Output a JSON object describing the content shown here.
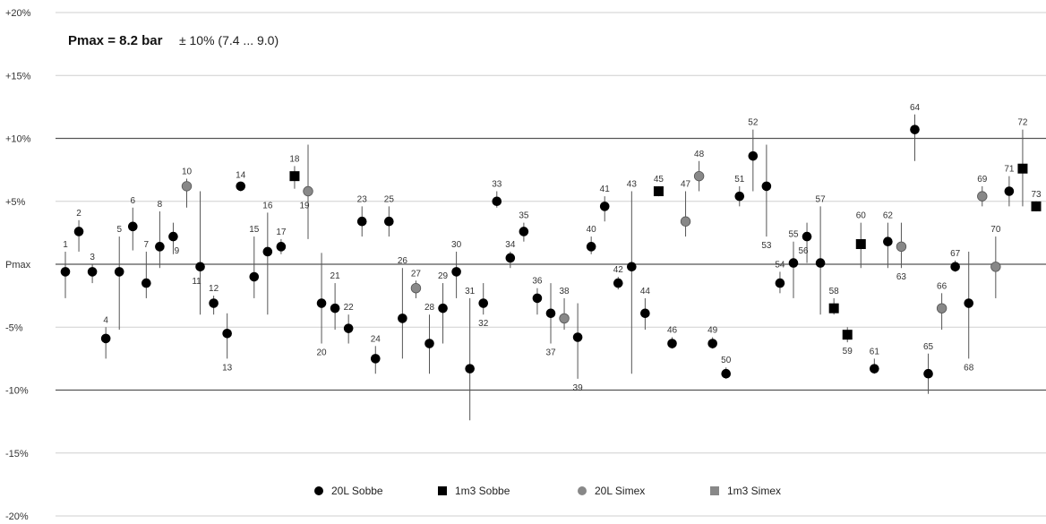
{
  "chart_data": {
    "type": "scatter",
    "title": "",
    "annotation": {
      "bold": "Pmax = 8.2 bar",
      "normal": "± 10%  (7.4 ... 9.0)"
    },
    "ylim": [
      -20,
      20
    ],
    "y_ticks": [
      {
        "v": 20,
        "label": "+20%"
      },
      {
        "v": 15,
        "label": "+15%"
      },
      {
        "v": 10,
        "label": "+10%"
      },
      {
        "v": 5,
        "label": "+5%"
      },
      {
        "v": 0,
        "label": "Pmax"
      },
      {
        "v": -5,
        "label": "-5%"
      },
      {
        "v": -10,
        "label": "-10%"
      },
      {
        "v": -15,
        "label": "-15%"
      },
      {
        "v": -20,
        "label": "-20%"
      }
    ],
    "grid": true,
    "legend_position": "bottom",
    "series": [
      {
        "name": "20L Sobbe",
        "marker": "circle",
        "color": "#000000"
      },
      {
        "name": "1m3 Sobbe",
        "marker": "square",
        "color": "#000000"
      },
      {
        "name": "20L Simex",
        "marker": "circle",
        "color": "#888888"
      },
      {
        "name": "1m3 Simex",
        "marker": "square",
        "color": "#888888"
      }
    ],
    "points": [
      {
        "n": "1",
        "s": 0,
        "y": -0.6,
        "hi": 1.0,
        "lo": -2.7,
        "lp": "above"
      },
      {
        "n": "2",
        "s": 0,
        "y": 2.6,
        "hi": 3.5,
        "lo": 1.0,
        "lp": "above"
      },
      {
        "n": "3",
        "s": 0,
        "y": -0.6,
        "hi": 0.0,
        "lo": -1.5,
        "lp": "above"
      },
      {
        "n": "4",
        "s": 0,
        "y": -5.9,
        "hi": -5.0,
        "lo": -7.5,
        "lp": "above"
      },
      {
        "n": "5",
        "s": 0,
        "y": -0.6,
        "hi": 2.2,
        "lo": -5.2,
        "lp": "above"
      },
      {
        "n": "6",
        "s": 0,
        "y": 3.0,
        "hi": 4.5,
        "lo": 1.1,
        "lp": "above"
      },
      {
        "n": "7",
        "s": 0,
        "y": -1.5,
        "hi": 1.0,
        "lo": -2.7,
        "lp": "above"
      },
      {
        "n": "8",
        "s": 0,
        "y": 1.4,
        "hi": 4.2,
        "lo": -0.3,
        "lp": "above"
      },
      {
        "n": "9",
        "s": 0,
        "y": 2.2,
        "hi": 3.3,
        "lo": 0.8,
        "lp": "belowright"
      },
      {
        "n": "10",
        "s": 2,
        "y": 6.2,
        "hi": 6.8,
        "lo": 4.5,
        "lp": "above"
      },
      {
        "n": "11",
        "s": 0,
        "y": -0.2,
        "hi": 5.8,
        "lo": -4.0,
        "lp": "belowleft"
      },
      {
        "n": "12",
        "s": 0,
        "y": -3.1,
        "hi": -2.5,
        "lo": -4.0,
        "lp": "above"
      },
      {
        "n": "13",
        "s": 0,
        "y": -5.5,
        "hi": -3.9,
        "lo": -7.5,
        "lp": "below"
      },
      {
        "n": "14",
        "s": 0,
        "y": 6.2,
        "hi": 6.5,
        "lo": 5.8,
        "lp": "above"
      },
      {
        "n": "15",
        "s": 0,
        "y": -1.0,
        "hi": 2.2,
        "lo": -2.7,
        "lp": "above"
      },
      {
        "n": "16",
        "s": 0,
        "y": 1.0,
        "hi": 4.1,
        "lo": -4.0,
        "lp": "above"
      },
      {
        "n": "17",
        "s": 0,
        "y": 1.4,
        "hi": 2.0,
        "lo": 0.8,
        "lp": "above"
      },
      {
        "n": "18",
        "s": 1,
        "y": 7.0,
        "hi": 7.8,
        "lo": 6.0,
        "lp": "above"
      },
      {
        "n": "19",
        "s": 2,
        "y": 5.8,
        "hi": 9.5,
        "lo": 2.0,
        "lp": "belowleft"
      },
      {
        "n": "20",
        "s": 0,
        "y": -3.1,
        "hi": 0.9,
        "lo": -6.3,
        "lp": "below"
      },
      {
        "n": "21",
        "s": 0,
        "y": -3.5,
        "hi": -1.5,
        "lo": -5.2,
        "lp": "above"
      },
      {
        "n": "22",
        "s": 0,
        "y": -5.1,
        "hi": -4.0,
        "lo": -6.3,
        "lp": "above"
      },
      {
        "n": "23",
        "s": 0,
        "y": 3.4,
        "hi": 4.6,
        "lo": 2.2,
        "lp": "above"
      },
      {
        "n": "24",
        "s": 0,
        "y": -7.5,
        "hi": -6.5,
        "lo": -8.7,
        "lp": "above"
      },
      {
        "n": "25",
        "s": 0,
        "y": 3.4,
        "hi": 4.6,
        "lo": 2.2,
        "lp": "above"
      },
      {
        "n": "26",
        "s": 0,
        "y": -4.3,
        "hi": -0.3,
        "lo": -7.5,
        "lp": "above"
      },
      {
        "n": "27",
        "s": 2,
        "y": -1.9,
        "hi": -1.3,
        "lo": -2.7,
        "lp": "above"
      },
      {
        "n": "28",
        "s": 0,
        "y": -6.3,
        "hi": -4.0,
        "lo": -8.7,
        "lp": "above"
      },
      {
        "n": "29",
        "s": 0,
        "y": -3.5,
        "hi": -1.5,
        "lo": -6.3,
        "lp": "above"
      },
      {
        "n": "30",
        "s": 0,
        "y": -0.6,
        "hi": 1.0,
        "lo": -2.7,
        "lp": "above"
      },
      {
        "n": "31",
        "s": 0,
        "y": -8.3,
        "hi": -2.7,
        "lo": -12.4,
        "lp": "above"
      },
      {
        "n": "32",
        "s": 0,
        "y": -3.1,
        "hi": -1.5,
        "lo": -4.0,
        "lp": "below"
      },
      {
        "n": "33",
        "s": 0,
        "y": 5.0,
        "hi": 5.8,
        "lo": 4.5,
        "lp": "above"
      },
      {
        "n": "34",
        "s": 0,
        "y": 0.5,
        "hi": 1.0,
        "lo": -0.3,
        "lp": "above"
      },
      {
        "n": "35",
        "s": 0,
        "y": 2.6,
        "hi": 3.3,
        "lo": 1.8,
        "lp": "above"
      },
      {
        "n": "36",
        "s": 0,
        "y": -2.7,
        "hi": -1.9,
        "lo": -4.0,
        "lp": "above"
      },
      {
        "n": "37",
        "s": 0,
        "y": -3.9,
        "hi": -1.5,
        "lo": -6.3,
        "lp": "below"
      },
      {
        "n": "38",
        "s": 2,
        "y": -4.3,
        "hi": -2.7,
        "lo": -5.2,
        "lp": "above"
      },
      {
        "n": "39",
        "s": 0,
        "y": -5.8,
        "hi": -3.1,
        "lo": -9.1,
        "lp": "below"
      },
      {
        "n": "40",
        "s": 0,
        "y": 1.4,
        "hi": 2.2,
        "lo": 0.8,
        "lp": "above"
      },
      {
        "n": "41",
        "s": 0,
        "y": 4.6,
        "hi": 5.4,
        "lo": 3.4,
        "lp": "above"
      },
      {
        "n": "42",
        "s": 0,
        "y": -1.5,
        "hi": -1.0,
        "lo": -2.0,
        "lp": "above"
      },
      {
        "n": "43",
        "s": 0,
        "y": -0.2,
        "hi": 5.8,
        "lo": -8.7,
        "lp": "above"
      },
      {
        "n": "44",
        "s": 0,
        "y": -3.9,
        "hi": -2.7,
        "lo": -5.2,
        "lp": "above"
      },
      {
        "n": "45",
        "s": 1,
        "y": 5.8,
        "hi": 6.2,
        "lo": 5.4,
        "lp": "above"
      },
      {
        "n": "46",
        "s": 0,
        "y": -6.3,
        "hi": -5.8,
        "lo": -6.7,
        "lp": "above"
      },
      {
        "n": "47",
        "s": 2,
        "y": 3.4,
        "hi": 5.8,
        "lo": 2.2,
        "lp": "above"
      },
      {
        "n": "48",
        "s": 2,
        "y": 7.0,
        "hi": 8.2,
        "lo": 5.8,
        "lp": "above"
      },
      {
        "n": "49",
        "s": 0,
        "y": -6.3,
        "hi": -5.8,
        "lo": -6.7,
        "lp": "above"
      },
      {
        "n": "50",
        "s": 0,
        "y": -8.7,
        "hi": -8.2,
        "lo": -9.1,
        "lp": "above"
      },
      {
        "n": "51",
        "s": 0,
        "y": 5.4,
        "hi": 6.2,
        "lo": 4.6,
        "lp": "above"
      },
      {
        "n": "52",
        "s": 0,
        "y": 8.6,
        "hi": 10.7,
        "lo": 5.8,
        "lp": "above"
      },
      {
        "n": "53",
        "s": 0,
        "y": 6.2,
        "hi": 9.5,
        "lo": 2.2,
        "lp": "below"
      },
      {
        "n": "54",
        "s": 0,
        "y": -1.5,
        "hi": -0.6,
        "lo": -2.3,
        "lp": "above"
      },
      {
        "n": "55",
        "s": 0,
        "y": 0.1,
        "hi": 1.8,
        "lo": -2.7,
        "lp": "above"
      },
      {
        "n": "56",
        "s": 0,
        "y": 2.2,
        "hi": 3.3,
        "lo": 0.1,
        "lp": "belowleft"
      },
      {
        "n": "57",
        "s": 0,
        "y": 0.1,
        "hi": 4.6,
        "lo": -4.0,
        "lp": "above"
      },
      {
        "n": "58",
        "s": 1,
        "y": -3.5,
        "hi": -2.7,
        "lo": -4.0,
        "lp": "above"
      },
      {
        "n": "59",
        "s": 1,
        "y": -5.6,
        "hi": -5.0,
        "lo": -6.2,
        "lp": "below"
      },
      {
        "n": "60",
        "s": 1,
        "y": 1.6,
        "hi": 3.3,
        "lo": -0.3,
        "lp": "above"
      },
      {
        "n": "61",
        "s": 0,
        "y": -8.3,
        "hi": -7.5,
        "lo": -8.7,
        "lp": "above"
      },
      {
        "n": "62",
        "s": 0,
        "y": 1.8,
        "hi": 3.3,
        "lo": -0.3,
        "lp": "above"
      },
      {
        "n": "63",
        "s": 2,
        "y": 1.4,
        "hi": 3.3,
        "lo": -0.3,
        "lp": "below"
      },
      {
        "n": "64",
        "s": 0,
        "y": 10.7,
        "hi": 11.9,
        "lo": 8.2,
        "lp": "above"
      },
      {
        "n": "65",
        "s": 0,
        "y": -8.7,
        "hi": -7.1,
        "lo": -10.3,
        "lp": "above"
      },
      {
        "n": "66",
        "s": 2,
        "y": -3.5,
        "hi": -2.3,
        "lo": -5.2,
        "lp": "above"
      },
      {
        "n": "67",
        "s": 0,
        "y": -0.2,
        "hi": 0.3,
        "lo": -0.6,
        "lp": "above"
      },
      {
        "n": "68",
        "s": 0,
        "y": -3.1,
        "hi": 1.0,
        "lo": -7.5,
        "lp": "below"
      },
      {
        "n": "69",
        "s": 2,
        "y": 5.4,
        "hi": 6.2,
        "lo": 4.6,
        "lp": "above"
      },
      {
        "n": "70",
        "s": 2,
        "y": -0.2,
        "hi": 2.2,
        "lo": -2.7,
        "lp": "above"
      },
      {
        "n": "71",
        "s": 0,
        "y": 5.8,
        "hi": 7.0,
        "lo": 4.6,
        "lp": "above"
      },
      {
        "n": "72",
        "s": 1,
        "y": 7.6,
        "hi": 10.7,
        "lo": 4.6,
        "lp": "above"
      },
      {
        "n": "73",
        "s": 1,
        "y": 4.6,
        "hi": 5.0,
        "lo": 4.2,
        "lp": "above"
      }
    ]
  }
}
